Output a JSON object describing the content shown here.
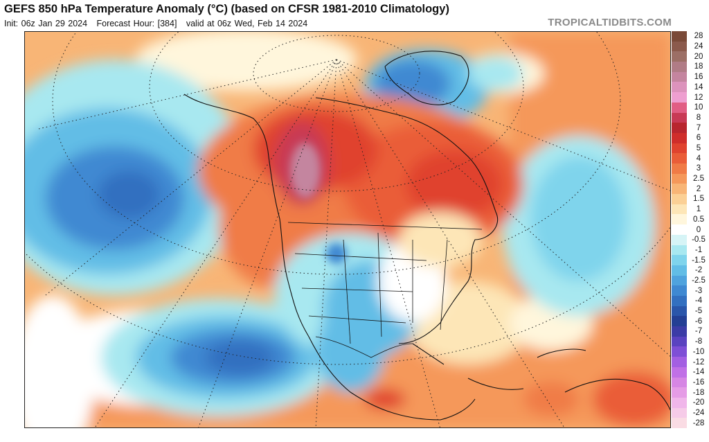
{
  "header": {
    "title": "GEFS 850 hPa Temperature Anomaly (°C) (based on CFSR 1981-2010 Climatology)",
    "init": "Init: 06z Jan 29 2024",
    "forecast_hour": "Forecast Hour: [384]",
    "valid": "valid at 06z Wed, Feb 14 2024",
    "credit": "TROPICALTIDBITS.COM"
  },
  "colorbar": {
    "levels": [
      {
        "label": "28",
        "color": "#7a4a38"
      },
      {
        "label": "24",
        "color": "#8b5a4c"
      },
      {
        "label": "20",
        "color": "#9c6f66"
      },
      {
        "label": "18",
        "color": "#b07c86"
      },
      {
        "label": "16",
        "color": "#c4859f"
      },
      {
        "label": "14",
        "color": "#dc93bc"
      },
      {
        "label": "12",
        "color": "#ee9fd0"
      },
      {
        "label": "10",
        "color": "#e15e84"
      },
      {
        "label": "8",
        "color": "#c83a55"
      },
      {
        "label": "7",
        "color": "#b8262e"
      },
      {
        "label": "6",
        "color": "#cf2e2b"
      },
      {
        "label": "5",
        "color": "#e0432f"
      },
      {
        "label": "4",
        "color": "#ea5d38"
      },
      {
        "label": "3",
        "color": "#f07b46"
      },
      {
        "label": "2.5",
        "color": "#f5985a"
      },
      {
        "label": "2",
        "color": "#f8b576"
      },
      {
        "label": "1.5",
        "color": "#fbd095"
      },
      {
        "label": "1",
        "color": "#fde6b7"
      },
      {
        "label": "0.5",
        "color": "#fff6dc"
      },
      {
        "label": "0",
        "color": "#ffffff"
      },
      {
        "label": "-0.5",
        "color": "#d6f4f6"
      },
      {
        "label": "-1",
        "color": "#a8e8f0"
      },
      {
        "label": "-1.5",
        "color": "#7fd4ec"
      },
      {
        "label": "-2",
        "color": "#62bde6"
      },
      {
        "label": "-2.5",
        "color": "#4fa3de"
      },
      {
        "label": "-3",
        "color": "#3f89d2"
      },
      {
        "label": "-4",
        "color": "#3370c0"
      },
      {
        "label": "-5",
        "color": "#2a56aa"
      },
      {
        "label": "-6",
        "color": "#233f94"
      },
      {
        "label": "-7",
        "color": "#3b3ca6"
      },
      {
        "label": "-8",
        "color": "#5a43c0"
      },
      {
        "label": "-10",
        "color": "#7e4fd6"
      },
      {
        "label": "-12",
        "color": "#a35fe2"
      },
      {
        "label": "-14",
        "color": "#c070e6"
      },
      {
        "label": "-16",
        "color": "#d686e4"
      },
      {
        "label": "-18",
        "color": "#e59ce6"
      },
      {
        "label": "-20",
        "color": "#f0b6ea"
      },
      {
        "label": "-24",
        "color": "#f6cbe8"
      },
      {
        "label": "-28",
        "color": "#fadce4"
      }
    ]
  },
  "palette": {
    "ocean_warm": "#f8b576",
    "neutral": "#ffffff",
    "hot": "#cf2e2b",
    "very_hot": "#c4859f",
    "cold": "#3f89d2",
    "coast": "#111111"
  }
}
